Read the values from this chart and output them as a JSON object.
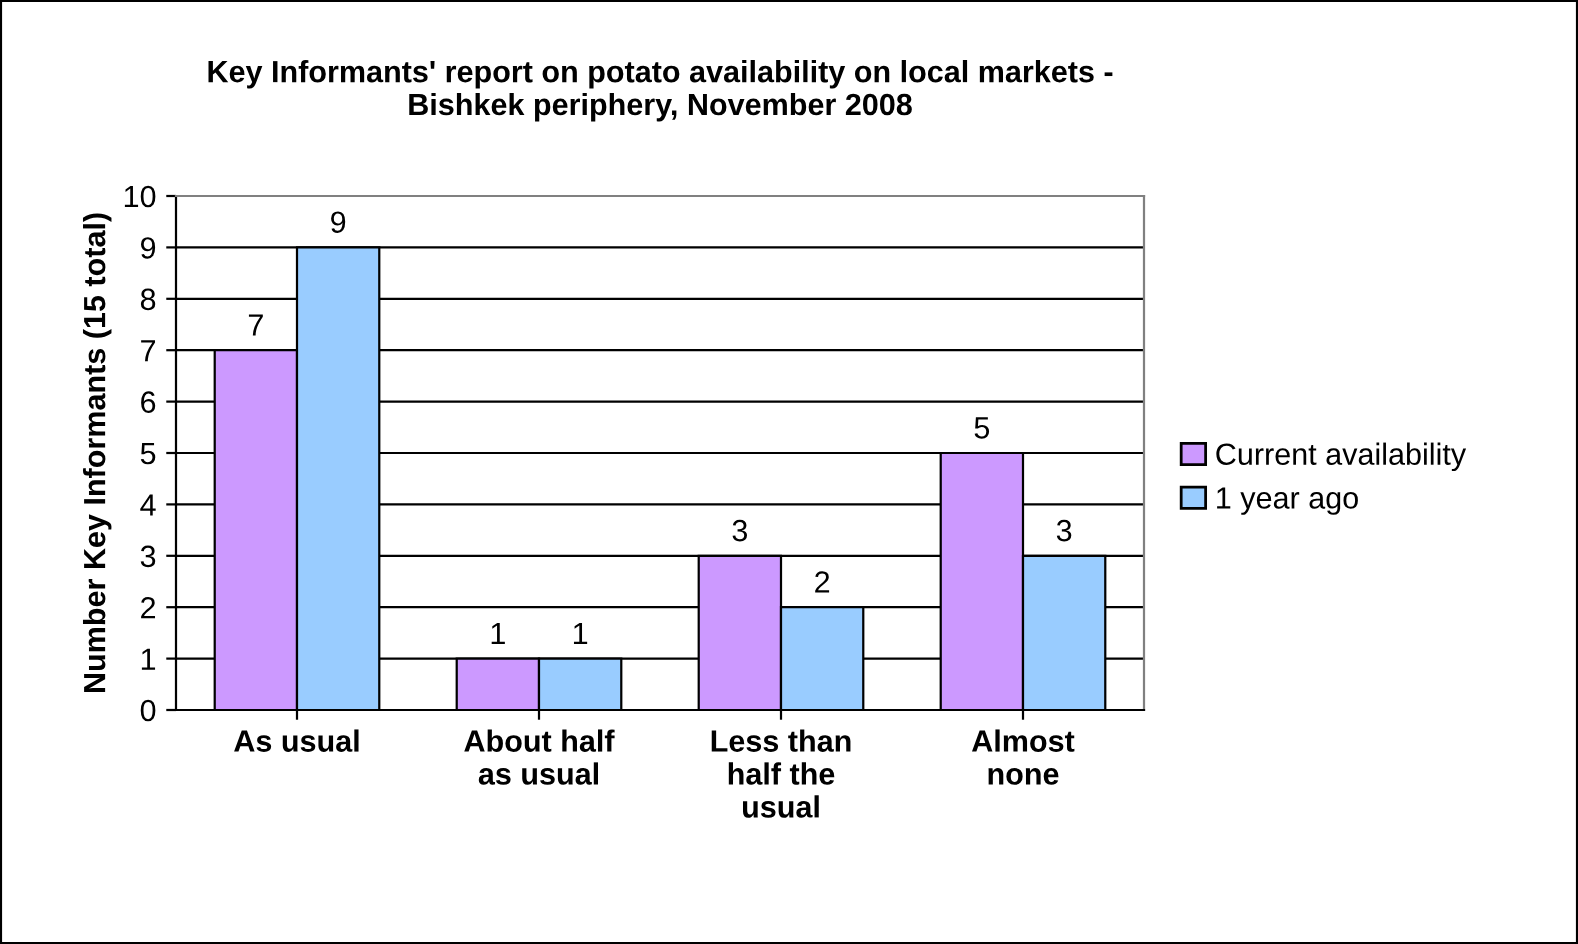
{
  "chart_data": {
    "type": "bar",
    "title": "Key Informants' report on potato availability on local markets -\nBishkek periphery, November 2008",
    "ylabel": "Number Key Informants (15 total)",
    "categories": [
      "As usual",
      "About half\nas usual",
      "Less than\nhalf the\nusual",
      "Almost\nnone"
    ],
    "series": [
      {
        "name": "Current availability",
        "color": "#cc99ff",
        "values": [
          7,
          1,
          3,
          5
        ]
      },
      {
        "name": "1 year ago",
        "color": "#99ccff",
        "values": [
          9,
          1,
          2,
          3
        ]
      }
    ],
    "ylim": [
      0,
      10
    ],
    "yticks": [
      0,
      1,
      2,
      3,
      4,
      5,
      6,
      7,
      8,
      9,
      10
    ],
    "grid": "y",
    "legend": "right",
    "data_labels": true
  }
}
